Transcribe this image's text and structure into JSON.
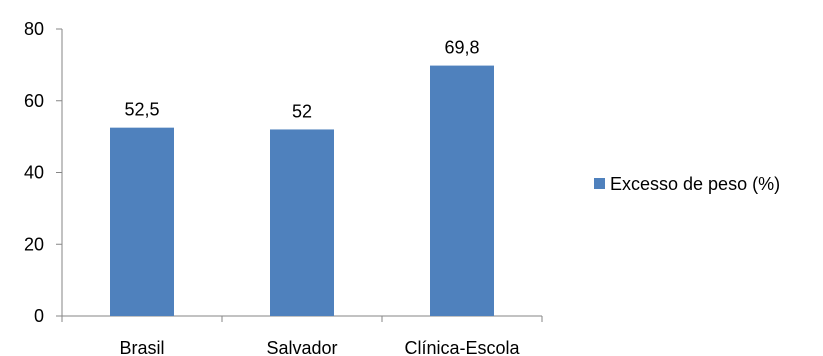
{
  "chart_data": {
    "type": "bar",
    "title": "",
    "xlabel": "",
    "ylabel": "",
    "categories": [
      "Brasil",
      "Salvador",
      "Clínica-Escola"
    ],
    "series": [
      {
        "name": "Excesso de peso (%)",
        "values": [
          52.5,
          52,
          69.8
        ],
        "data_labels": [
          "52,5",
          "52",
          "69,8"
        ],
        "color": "#4F81BD"
      }
    ],
    "ylim": [
      0,
      80
    ],
    "yticks": [
      0,
      20,
      40,
      60,
      80
    ],
    "ytick_labels": [
      "0",
      "20",
      "40",
      "60",
      "80"
    ],
    "grid": false,
    "legend": {
      "position": "right",
      "label": "Excesso de peso (%)"
    },
    "axis_color": "#868686"
  }
}
